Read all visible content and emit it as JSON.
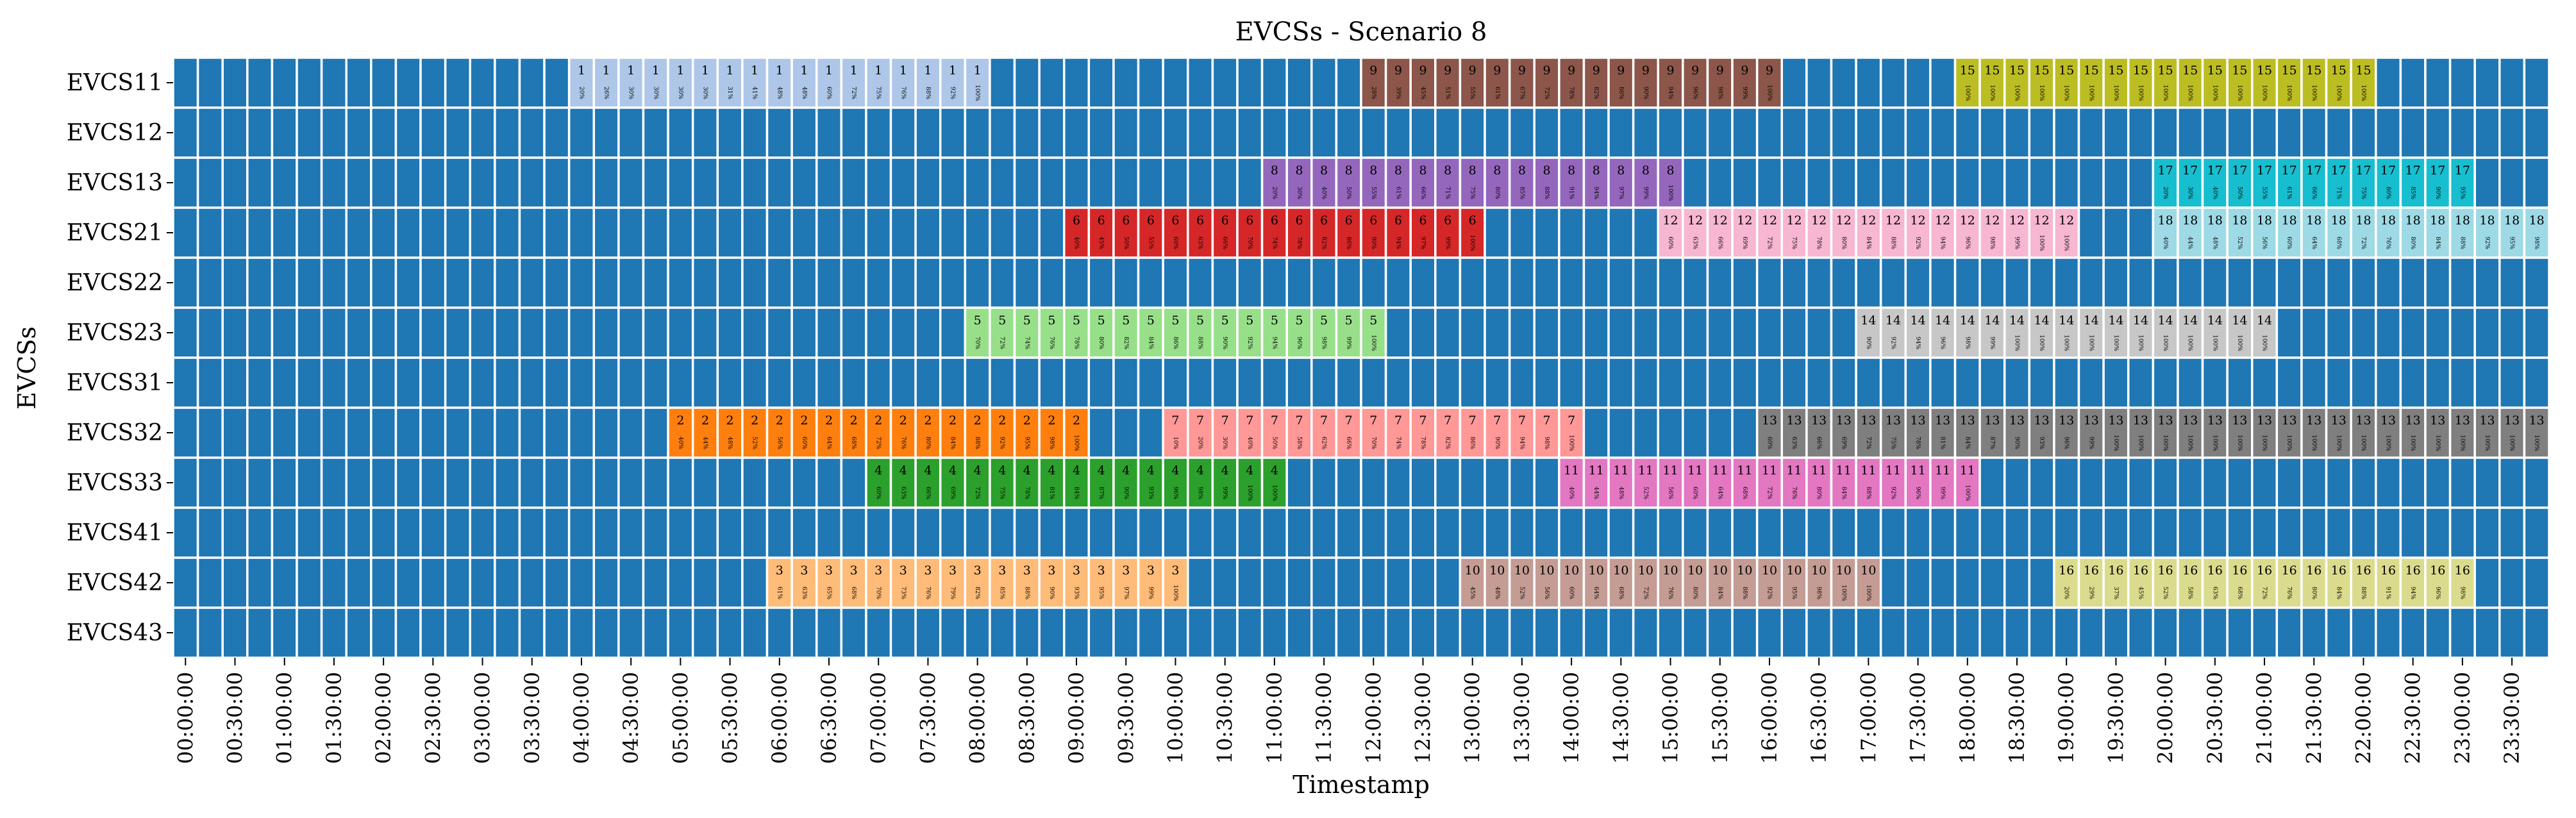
{
  "chart_data": {
    "type": "heatmap",
    "title": "EVCSs - Scenario 8",
    "xlabel": "Timestamp",
    "ylabel": "EVCSs",
    "background_color": "#1f77b4",
    "y_categories": [
      "EVCS11",
      "EVCS12",
      "EVCS13",
      "EVCS21",
      "EVCS22",
      "EVCS23",
      "EVCS31",
      "EVCS32",
      "EVCS33",
      "EVCS41",
      "EVCS42",
      "EVCS43"
    ],
    "x_tick_labels": [
      "00:00:00",
      "00:30:00",
      "01:00:00",
      "01:30:00",
      "02:00:00",
      "02:30:00",
      "03:00:00",
      "03:30:00",
      "04:00:00",
      "04:30:00",
      "05:00:00",
      "05:30:00",
      "06:00:00",
      "06:30:00",
      "07:00:00",
      "07:30:00",
      "08:00:00",
      "08:30:00",
      "09:00:00",
      "09:30:00",
      "10:00:00",
      "10:30:00",
      "11:00:00",
      "11:30:00",
      "12:00:00",
      "12:30:00",
      "13:00:00",
      "13:30:00",
      "14:00:00",
      "14:30:00",
      "15:00:00",
      "15:30:00",
      "16:00:00",
      "16:30:00",
      "17:00:00",
      "17:30:00",
      "18:00:00",
      "18:30:00",
      "19:00:00",
      "19:30:00",
      "20:00:00",
      "20:30:00",
      "21:00:00",
      "21:30:00",
      "22:00:00",
      "22:30:00",
      "23:00:00",
      "23:30:00"
    ],
    "slot_minutes": 15,
    "num_slots": 96,
    "sessions": [
      {
        "vehicle": "1",
        "station": "EVCS11",
        "start": "04:00:00",
        "end": "08:00:00",
        "color": "#aec7e8",
        "soc": [
          "20%",
          "26%",
          "30%",
          "30%",
          "30%",
          "30%",
          "31%",
          "41%",
          "48%",
          "48%",
          "60%",
          "72%",
          "75%",
          "76%",
          "88%",
          "92%",
          "100%"
        ]
      },
      {
        "vehicle": "9",
        "station": "EVCS11",
        "start": "12:00:00",
        "end": "16:00:00",
        "color": "#8c564b",
        "soc": [
          "28%",
          "39%",
          "45%",
          "51%",
          "55%",
          "61%",
          "67%",
          "72%",
          "78%",
          "82%",
          "86%",
          "90%",
          "94%",
          "96%",
          "98%",
          "99%",
          "100%"
        ]
      },
      {
        "vehicle": "15",
        "station": "EVCS11",
        "start": "18:00:00",
        "end": "22:00:00",
        "color": "#bcbd22",
        "soc": [
          "100%",
          "100%",
          "100%",
          "100%",
          "100%",
          "100%",
          "100%",
          "100%",
          "100%",
          "100%",
          "100%",
          "100%",
          "100%",
          "100%",
          "100%",
          "100%",
          "100%"
        ]
      },
      {
        "vehicle": "8",
        "station": "EVCS13",
        "start": "11:00:00",
        "end": "15:00:00",
        "color": "#9467bd",
        "soc": [
          "20%",
          "30%",
          "40%",
          "50%",
          "55%",
          "61%",
          "66%",
          "71%",
          "75%",
          "80%",
          "85%",
          "88%",
          "91%",
          "94%",
          "97%",
          "99%",
          "100%"
        ]
      },
      {
        "vehicle": "17",
        "station": "EVCS13",
        "start": "20:00:00",
        "end": "23:00:00",
        "color": "#17becf",
        "soc": [
          "20%",
          "30%",
          "40%",
          "50%",
          "55%",
          "61%",
          "66%",
          "71%",
          "75%",
          "80%",
          "85%",
          "90%",
          "95%"
        ]
      },
      {
        "vehicle": "6",
        "station": "EVCS21",
        "start": "09:00:00",
        "end": "13:00:00",
        "color": "#d62728",
        "soc": [
          "40%",
          "45%",
          "50%",
          "55%",
          "60%",
          "63%",
          "66%",
          "70%",
          "74%",
          "78%",
          "82%",
          "86%",
          "90%",
          "94%",
          "97%",
          "99%",
          "100%"
        ]
      },
      {
        "vehicle": "12",
        "station": "EVCS21",
        "start": "15:00:00",
        "end": "19:00:00",
        "color": "#f7b6d2",
        "soc": [
          "60%",
          "63%",
          "66%",
          "69%",
          "72%",
          "75%",
          "78%",
          "80%",
          "84%",
          "88%",
          "92%",
          "94%",
          "96%",
          "98%",
          "99%",
          "100%",
          "100%"
        ]
      },
      {
        "vehicle": "18",
        "station": "EVCS21",
        "start": "20:00:00",
        "end": "24:00:00",
        "color": "#9edae5",
        "soc": [
          "40%",
          "44%",
          "48%",
          "52%",
          "56%",
          "60%",
          "64%",
          "68%",
          "72%",
          "76%",
          "80%",
          "84%",
          "88%",
          "92%",
          "95%",
          "98%"
        ]
      },
      {
        "vehicle": "5",
        "station": "EVCS23",
        "start": "08:00:00",
        "end": "12:00:00",
        "color": "#98df8a",
        "soc": [
          "70%",
          "72%",
          "74%",
          "76%",
          "78%",
          "80%",
          "82%",
          "84%",
          "86%",
          "88%",
          "90%",
          "92%",
          "94%",
          "96%",
          "98%",
          "99%",
          "100%"
        ]
      },
      {
        "vehicle": "14",
        "station": "EVCS23",
        "start": "17:00:00",
        "end": "21:00:00",
        "color": "#c7c7c7",
        "soc": [
          "90%",
          "92%",
          "94%",
          "96%",
          "98%",
          "99%",
          "100%",
          "100%",
          "100%",
          "100%",
          "100%",
          "100%",
          "100%",
          "100%",
          "100%",
          "100%",
          "100%"
        ]
      },
      {
        "vehicle": "2",
        "station": "EVCS32",
        "start": "05:00:00",
        "end": "09:00:00",
        "color": "#ff7f0e",
        "soc": [
          "40%",
          "44%",
          "48%",
          "52%",
          "56%",
          "60%",
          "64%",
          "68%",
          "72%",
          "76%",
          "80%",
          "84%",
          "88%",
          "92%",
          "95%",
          "98%",
          "100%"
        ]
      },
      {
        "vehicle": "7",
        "station": "EVCS32",
        "start": "10:00:00",
        "end": "14:00:00",
        "color": "#ff9896",
        "soc": [
          "10%",
          "20%",
          "30%",
          "40%",
          "50%",
          "58%",
          "62%",
          "66%",
          "70%",
          "74%",
          "78%",
          "82%",
          "86%",
          "90%",
          "94%",
          "98%",
          "100%"
        ]
      },
      {
        "vehicle": "13",
        "station": "EVCS32",
        "start": "16:00:00",
        "end": "24:00:00",
        "color": "#7f7f7f",
        "soc": [
          "60%",
          "63%",
          "66%",
          "69%",
          "72%",
          "75%",
          "78%",
          "81%",
          "84%",
          "87%",
          "90%",
          "93%",
          "96%",
          "99%",
          "100%",
          "100%",
          "100%",
          "100%",
          "100%",
          "100%",
          "100%",
          "100%",
          "100%",
          "100%",
          "100%",
          "100%",
          "100%",
          "100%",
          "100%",
          "100%",
          "100%",
          "100%"
        ]
      },
      {
        "vehicle": "4",
        "station": "EVCS33",
        "start": "07:00:00",
        "end": "11:00:00",
        "color": "#2ca02c",
        "soc": [
          "60%",
          "63%",
          "66%",
          "69%",
          "72%",
          "75%",
          "78%",
          "81%",
          "84%",
          "87%",
          "90%",
          "93%",
          "96%",
          "98%",
          "99%",
          "100%",
          "100%"
        ]
      },
      {
        "vehicle": "11",
        "station": "EVCS33",
        "start": "14:00:00",
        "end": "18:00:00",
        "color": "#e377c2",
        "soc": [
          "40%",
          "44%",
          "48%",
          "52%",
          "56%",
          "60%",
          "64%",
          "68%",
          "72%",
          "76%",
          "80%",
          "84%",
          "88%",
          "92%",
          "96%",
          "99%",
          "100%"
        ]
      },
      {
        "vehicle": "3",
        "station": "EVCS42",
        "start": "06:00:00",
        "end": "10:00:00",
        "color": "#ffbb78",
        "soc": [
          "61%",
          "63%",
          "65%",
          "68%",
          "70%",
          "73%",
          "76%",
          "79%",
          "82%",
          "85%",
          "88%",
          "90%",
          "93%",
          "95%",
          "97%",
          "99%",
          "100%"
        ]
      },
      {
        "vehicle": "10",
        "station": "EVCS42",
        "start": "13:00:00",
        "end": "17:00:00",
        "color": "#c49c94",
        "soc": [
          "45%",
          "48%",
          "52%",
          "56%",
          "60%",
          "64%",
          "68%",
          "72%",
          "76%",
          "80%",
          "84%",
          "88%",
          "92%",
          "95%",
          "98%",
          "100%",
          "100%"
        ]
      },
      {
        "vehicle": "16",
        "station": "EVCS42",
        "start": "19:00:00",
        "end": "23:00:00",
        "color": "#dbdb8d",
        "soc": [
          "20%",
          "29%",
          "37%",
          "45%",
          "52%",
          "58%",
          "63%",
          "68%",
          "72%",
          "76%",
          "80%",
          "84%",
          "88%",
          "91%",
          "94%",
          "96%",
          "98%"
        ]
      }
    ]
  }
}
